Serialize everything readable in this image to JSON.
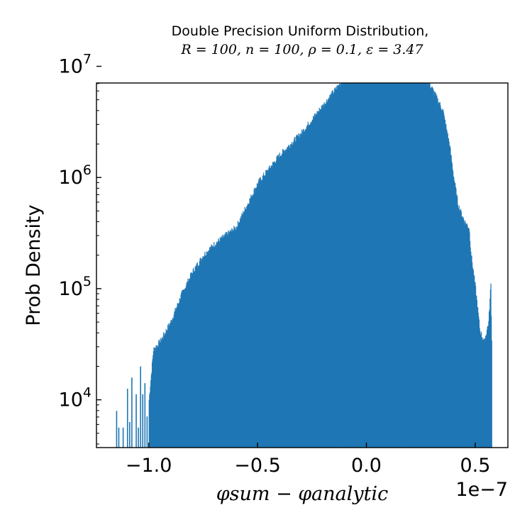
{
  "chart_data": {
    "type": "bar",
    "title": "Double Precision Uniform Distribution,",
    "subtitle": "R = 100, n = 100, ρ = 0.1, ε = 3.47",
    "xlabel": "φsum − φanalytic",
    "ylabel": "Prob Density",
    "x_offset_label": "1e−7",
    "xlim": [
      -1.24,
      0.65
    ],
    "ylim_log10": [
      3.57,
      6.85
    ],
    "yscale": "log",
    "grid": false,
    "bar_color": "#1f77b4",
    "x_ticks": [
      {
        "value": -1.0,
        "label": "−1.0"
      },
      {
        "value": -0.5,
        "label": "−0.5"
      },
      {
        "value": 0.0,
        "label": "0.0"
      },
      {
        "value": 0.5,
        "label": "0.5"
      }
    ],
    "y_ticks": [
      {
        "exp": 4,
        "base": "10",
        "sup": "4"
      },
      {
        "exp": 5,
        "base": "10",
        "sup": "5"
      },
      {
        "exp": 6,
        "base": "10",
        "sup": "6"
      },
      {
        "exp": 7,
        "base": "10",
        "sup": "7"
      }
    ],
    "envelope_log10": [
      [
        -1.0,
        4.0
      ],
      [
        -0.98,
        4.45
      ],
      [
        -0.95,
        4.52
      ],
      [
        -0.9,
        4.7
      ],
      [
        -0.85,
        4.95
      ],
      [
        -0.8,
        5.15
      ],
      [
        -0.75,
        5.3
      ],
      [
        -0.7,
        5.4
      ],
      [
        -0.6,
        5.55
      ],
      [
        -0.5,
        5.95
      ],
      [
        -0.4,
        6.2
      ],
      [
        -0.3,
        6.4
      ],
      [
        -0.2,
        6.65
      ],
      [
        -0.1,
        6.9
      ],
      [
        -0.05,
        7.1
      ],
      [
        -0.02,
        7.4
      ],
      [
        0.0,
        7.55
      ],
      [
        0.02,
        7.55
      ],
      [
        0.05,
        7.4
      ],
      [
        0.1,
        7.25
      ],
      [
        0.15,
        7.17
      ],
      [
        0.2,
        7.12
      ],
      [
        0.25,
        6.95
      ],
      [
        0.3,
        6.8
      ],
      [
        0.35,
        6.6
      ],
      [
        0.38,
        6.3
      ],
      [
        0.4,
        6.0
      ],
      [
        0.42,
        5.75
      ],
      [
        0.45,
        5.6
      ],
      [
        0.47,
        5.55
      ],
      [
        0.48,
        5.3
      ],
      [
        0.5,
        5.0
      ],
      [
        0.52,
        4.62
      ],
      [
        0.54,
        4.52
      ],
      [
        0.56,
        4.7
      ],
      [
        0.57,
        5.04
      ],
      [
        0.575,
        4.4
      ]
    ],
    "sparse_left_tail": [
      {
        "x": -1.15,
        "log10": 3.9
      },
      {
        "x": -1.14,
        "log10": 3.75
      },
      {
        "x": -1.12,
        "log10": 3.75
      },
      {
        "x": -1.1,
        "log10": 4.1
      },
      {
        "x": -1.09,
        "log10": 3.8
      },
      {
        "x": -1.08,
        "log10": 4.2
      },
      {
        "x": -1.06,
        "log10": 4.05
      },
      {
        "x": -1.05,
        "log10": 3.75
      },
      {
        "x": -1.04,
        "log10": 4.3
      },
      {
        "x": -1.03,
        "log10": 4.05
      },
      {
        "x": -1.02,
        "log10": 4.15
      },
      {
        "x": -1.01,
        "log10": 3.85
      }
    ]
  }
}
